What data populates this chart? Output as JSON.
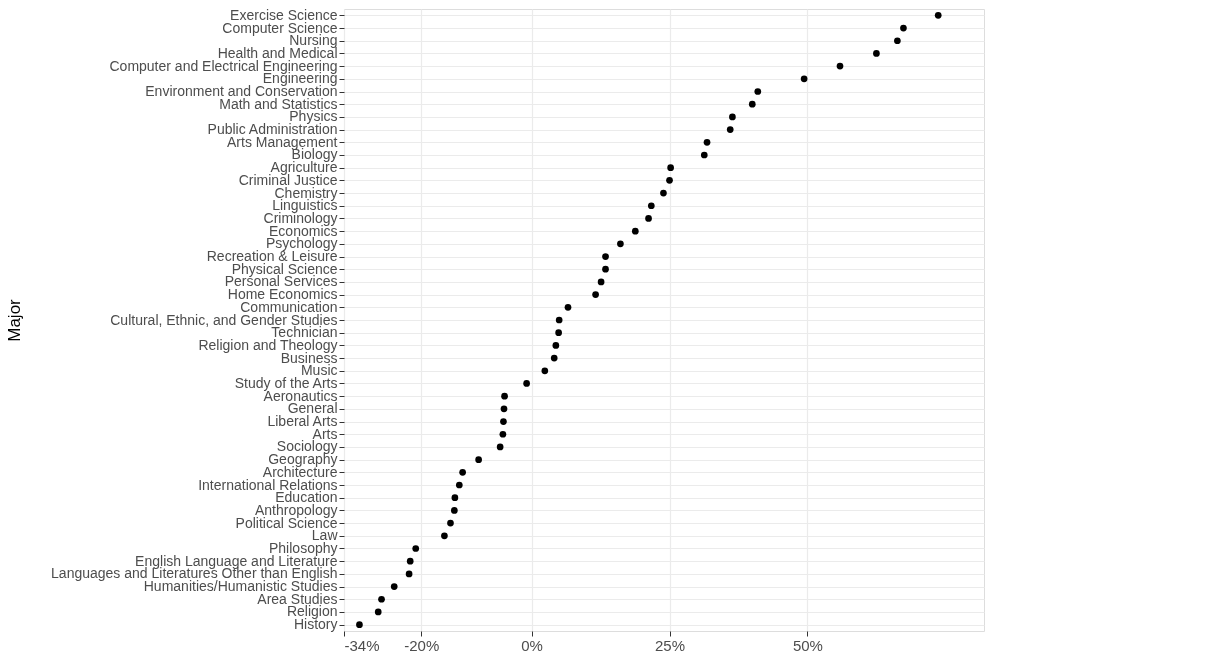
{
  "chart_data": {
    "type": "scatter",
    "ylabel": "Major",
    "categories": [
      "Exercise Science",
      "Computer Science",
      "Nursing",
      "Health and Medical",
      "Computer and Electrical Engineering",
      "Engineering",
      "Environment and Conservation",
      "Math and Statistics",
      "Physics",
      "Public Administration",
      "Arts Management",
      "Biology",
      "Agriculture",
      "Criminal Justice",
      "Chemistry",
      "Linguistics",
      "Criminology",
      "Economics",
      "Psychology",
      "Recreation & Leisure",
      "Physical Science",
      "Personal Services",
      "Home Economics",
      "Communication",
      "Cultural, Ethnic, and Gender Studies",
      "Technician",
      "Religion and Theology",
      "Business",
      "Music",
      "Study of the Arts",
      "Aeronautics",
      "General",
      "Liberal Arts",
      "Arts",
      "Sociology",
      "Geography",
      "Architecture",
      "International Relations",
      "Education",
      "Anthropology",
      "Political Science",
      "Law",
      "Philosophy",
      "English Language and Literature",
      "Languages and Literatures Other than English",
      "Humanities/Humanistic Studies",
      "Area Studies",
      "Religion",
      "History"
    ],
    "series": [
      {
        "color": "#000000",
        "values": [
          73.7,
          67.4,
          66.3,
          62.5,
          55.9,
          49.4,
          41.0,
          40.0,
          36.4,
          36.0,
          31.8,
          31.3,
          25.2,
          25.0,
          23.9,
          21.7,
          21.2,
          18.8,
          16.1,
          13.4,
          13.4,
          12.6,
          11.6,
          6.6,
          5.0,
          4.9,
          4.4,
          4.1,
          2.4,
          -0.9,
          -4.9,
          -5.0,
          -5.1,
          -5.2,
          -5.7,
          -9.6,
          -12.5,
          -13.1,
          -13.9,
          -14.0,
          -14.7,
          -15.8,
          -21.0,
          -22.0,
          -22.2,
          -24.9,
          -27.2,
          -27.8,
          -31.2
        ]
      }
    ],
    "orientation": "horizontal",
    "xlim": [
      -34,
      82
    ],
    "xticks": [
      {
        "value": -34,
        "label": "-34%"
      },
      {
        "value": -20,
        "label": "-20%"
      },
      {
        "value": 0,
        "label": "0%"
      },
      {
        "value": 25,
        "label": "25%"
      },
      {
        "value": 50,
        "label": "50%"
      }
    ],
    "grid": true,
    "marker": "circle"
  }
}
